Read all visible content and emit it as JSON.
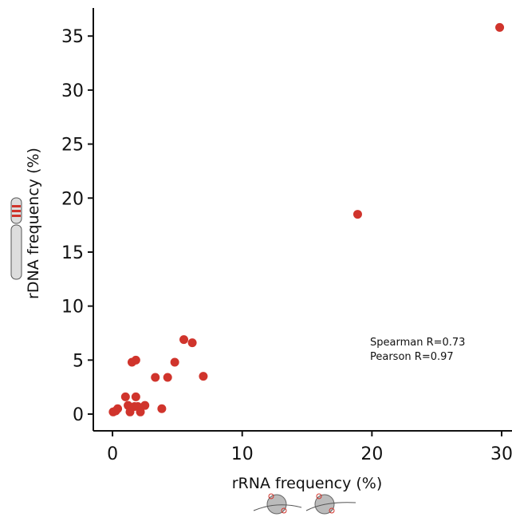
{
  "chart_data": {
    "type": "scatter",
    "x_label": "rRNA frequency (%)",
    "y_label": "rDNA frequency (%)",
    "annotations": [
      "Spearman R=0.73",
      "Pearson R=0.97"
    ],
    "color": "#d0342c",
    "x": [
      29.85,
      18.9,
      5.5,
      6.15,
      1.8,
      1.5,
      4.8,
      3.3,
      4.25,
      7.0,
      1.0,
      1.8,
      1.2,
      1.7,
      2.5,
      3.8,
      0.4,
      0.05,
      0.25,
      1.35,
      2.15,
      1.95
    ],
    "values": [
      35.8,
      18.5,
      6.9,
      6.6,
      5.0,
      4.8,
      4.8,
      3.4,
      3.4,
      3.5,
      1.6,
      1.6,
      0.8,
      0.7,
      0.8,
      0.5,
      0.5,
      0.2,
      0.3,
      0.2,
      0.2,
      0.7
    ],
    "xlim": [
      -1.48,
      30.8
    ],
    "ylim": [
      -1.55,
      37.6
    ],
    "xticks": [
      0,
      10,
      20,
      30
    ],
    "yticks": [
      0,
      5,
      10,
      15,
      20,
      25,
      30,
      35
    ]
  }
}
